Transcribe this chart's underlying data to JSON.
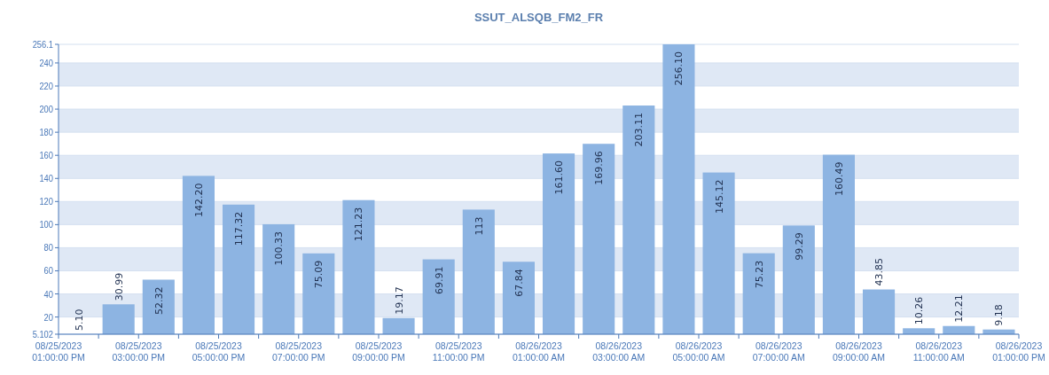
{
  "chart_data": {
    "type": "bar",
    "title": "SSUT_ALSQB_FM2_FR",
    "x": [
      "2023-08-25T13:30",
      "2023-08-25T14:30",
      "2023-08-25T15:30",
      "2023-08-25T16:30",
      "2023-08-25T17:30",
      "2023-08-25T18:30",
      "2023-08-25T19:30",
      "2023-08-25T20:30",
      "2023-08-25T21:30",
      "2023-08-25T22:30",
      "2023-08-25T23:30",
      "2023-08-26T00:30",
      "2023-08-26T01:30",
      "2023-08-26T02:30",
      "2023-08-26T03:30",
      "2023-08-26T04:30",
      "2023-08-26T05:30",
      "2023-08-26T06:30",
      "2023-08-26T07:30",
      "2023-08-26T08:30",
      "2023-08-26T09:30",
      "2023-08-26T10:30",
      "2023-08-26T11:30",
      "2023-08-26T12:30"
    ],
    "values": [
      5.1,
      30.99,
      52.32,
      142.2,
      117.32,
      100.33,
      75.09,
      121.23,
      19.17,
      69.91,
      113,
      67.84,
      161.6,
      169.96,
      203.11,
      256.1,
      145.12,
      75.23,
      99.29,
      160.49,
      43.85,
      10.26,
      12.21,
      9.18
    ],
    "value_labels": [
      "5.10",
      "30.99",
      "52.32",
      "142.20",
      "117.32",
      "100.33",
      "75.09",
      "121.23",
      "19.17",
      "69.91",
      "113",
      "67.84",
      "161.60",
      "169.96",
      "203.11",
      "256.10",
      "145.12",
      "75.23",
      "99.29",
      "160.49",
      "43.85",
      "10.26",
      "12.21",
      "9.18"
    ],
    "color": "#8db4e2",
    "xlim": [
      "2023-08-25T13:00",
      "2023-08-26T13:00"
    ],
    "xticks": [
      {
        "value": "2023-08-25T13:00",
        "label": "08/25/2023\n01:00:00 PM"
      },
      {
        "value": "2023-08-25T14:00",
        "label": null
      },
      {
        "value": "2023-08-25T15:00",
        "label": "08/25/2023\n03:00:00 PM"
      },
      {
        "value": "2023-08-25T16:00",
        "label": null
      },
      {
        "value": "2023-08-25T17:00",
        "label": "08/25/2023\n05:00:00 PM"
      },
      {
        "value": "2023-08-25T18:00",
        "label": null
      },
      {
        "value": "2023-08-25T19:00",
        "label": "08/25/2023\n07:00:00 PM"
      },
      {
        "value": "2023-08-25T20:00",
        "label": null
      },
      {
        "value": "2023-08-25T21:00",
        "label": "08/25/2023\n09:00:00 PM"
      },
      {
        "value": "2023-08-25T22:00",
        "label": null
      },
      {
        "value": "2023-08-25T23:00",
        "label": "08/25/2023\n11:00:00 PM"
      },
      {
        "value": "2023-08-26T00:00",
        "label": null
      },
      {
        "value": "2023-08-26T01:00",
        "label": "08/26/2023\n01:00:00 AM"
      },
      {
        "value": "2023-08-26T02:00",
        "label": null
      },
      {
        "value": "2023-08-26T03:00",
        "label": "08/26/2023\n03:00:00 AM"
      },
      {
        "value": "2023-08-26T04:00",
        "label": null
      },
      {
        "value": "2023-08-26T05:00",
        "label": "08/26/2023\n05:00:00 AM"
      },
      {
        "value": "2023-08-26T06:00",
        "label": null
      },
      {
        "value": "2023-08-26T07:00",
        "label": "08/26/2023\n07:00:00 AM"
      },
      {
        "value": "2023-08-26T08:00",
        "label": null
      },
      {
        "value": "2023-08-26T09:00",
        "label": "08/26/2023\n09:00:00 AM"
      },
      {
        "value": "2023-08-26T10:00",
        "label": null
      },
      {
        "value": "2023-08-26T11:00",
        "label": "08/26/2023\n11:00:00 AM"
      },
      {
        "value": "2023-08-26T12:00",
        "label": null
      },
      {
        "value": "2023-08-26T13:00",
        "label": "08/26/2023\n01:00:00 PM"
      }
    ],
    "ylim": [
      5.1,
      256.1
    ],
    "yticks": [
      {
        "value": 5.102,
        "label": "5.102"
      },
      20,
      40,
      60,
      80,
      100,
      120,
      140,
      160,
      180,
      200,
      220,
      240,
      {
        "value": 256.1,
        "label": "256.1"
      }
    ],
    "grid": "y"
  }
}
